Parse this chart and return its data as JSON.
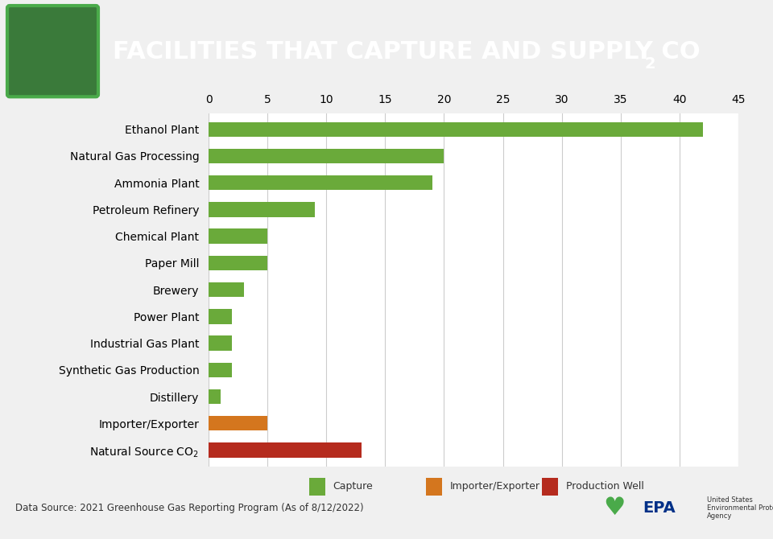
{
  "categories": [
    "Ethanol Plant",
    "Natural Gas Processing",
    "Ammonia Plant",
    "Petroleum Refinery",
    "Chemical Plant",
    "Paper Mill",
    "Brewery",
    "Power Plant",
    "Industrial Gas Plant",
    "Synthetic Gas Production",
    "Distillery",
    "Importer/Exporter",
    "Natural Source CO$_2$"
  ],
  "values": [
    42,
    20,
    19,
    9,
    5,
    5,
    3,
    2,
    2,
    2,
    1,
    5,
    13
  ],
  "bar_colors": [
    "#6aaa3a",
    "#6aaa3a",
    "#6aaa3a",
    "#6aaa3a",
    "#6aaa3a",
    "#6aaa3a",
    "#6aaa3a",
    "#6aaa3a",
    "#6aaa3a",
    "#6aaa3a",
    "#6aaa3a",
    "#d4761e",
    "#b52b1e"
  ],
  "xlim": [
    0,
    45
  ],
  "xticks": [
    0,
    5,
    10,
    15,
    20,
    25,
    30,
    35,
    40,
    45
  ],
  "header_bg_color": "#6b5552",
  "header_text_color": "#ffffff",
  "header_icon_bg": "#3a7a3a",
  "header_icon_border": "#4aaa4a",
  "title_text": "FACILITIES THAT CAPTURE AND SUPPLY CO",
  "title_sub": "2",
  "footer_text": "Data Source: 2021 Greenhouse Gas Reporting Program (As of 8/12/2022)",
  "legend_items": [
    {
      "label": "Capture",
      "color": "#6aaa3a"
    },
    {
      "label": "Importer/Exporter",
      "color": "#d4761e"
    },
    {
      "label": "Production Well",
      "color": "#b52b1e"
    }
  ],
  "plot_bg_color": "#ffffff",
  "grid_color": "#cccccc",
  "bar_height": 0.55,
  "tick_fontsize": 10,
  "label_fontsize": 10,
  "bottom_bar_color": "#4a3f3f",
  "epa_blue": "#003087"
}
